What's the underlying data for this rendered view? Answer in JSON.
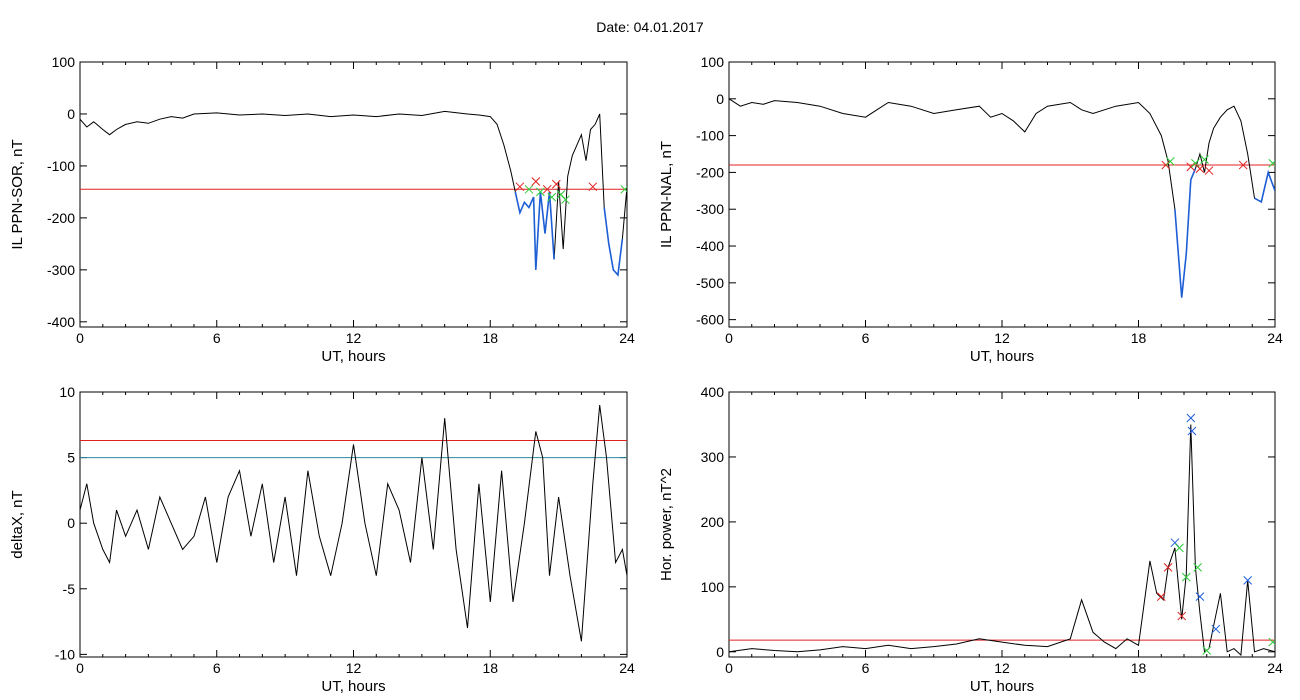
{
  "figure": {
    "title": "Date:  04.01.2017"
  },
  "colors": {
    "frame": "#000000",
    "trace": "#000000",
    "threshold_red": "#e02020",
    "threshold_teal": "#2a8a9c",
    "segment_blue": "#1f5fd6",
    "marker_red": "#e02020",
    "marker_green": "#2ecc3a",
    "marker_blue": "#2060e0"
  },
  "chart_data": [
    {
      "type": "line",
      "ylabel": "IL PPN-SOR, nT",
      "xlabel": "UT, hours",
      "xlim": [
        0,
        24
      ],
      "ylim": [
        -410,
        100
      ],
      "xticks": [
        0,
        6,
        12,
        18,
        24
      ],
      "yticks": [
        100,
        0,
        -100,
        -200,
        -300,
        -400
      ],
      "threshold_red": -145,
      "series": [
        {
          "x": [
            0,
            0.3,
            0.6,
            1.0,
            1.3,
            1.6,
            2.0,
            2.5,
            3.0,
            3.5,
            4.0,
            4.5,
            5.0,
            6,
            7,
            8,
            9,
            10,
            11,
            12,
            13,
            14,
            15,
            16,
            17,
            17.5,
            18,
            18.3,
            18.6,
            18.9,
            19.1,
            19.3,
            19.5,
            19.7,
            19.9,
            20.0,
            20.2,
            20.4,
            20.6,
            20.8,
            21.0,
            21.2,
            21.4,
            21.6,
            21.8,
            22.0,
            22.2,
            22.4,
            22.6,
            22.8,
            23.0,
            23.2,
            23.4,
            23.6,
            23.8,
            24
          ],
          "y": [
            -10,
            -25,
            -15,
            -30,
            -40,
            -30,
            -20,
            -15,
            -18,
            -10,
            -5,
            -8,
            0,
            2,
            -2,
            0,
            -3,
            0,
            -5,
            -2,
            -5,
            0,
            -3,
            5,
            0,
            -2,
            -5,
            -20,
            -60,
            -110,
            -150,
            -190,
            -170,
            -180,
            -160,
            -300,
            -150,
            -230,
            -150,
            -280,
            -130,
            -260,
            -120,
            -80,
            -60,
            -40,
            -90,
            -30,
            -20,
            0,
            -180,
            -250,
            -300,
            -310,
            -240,
            -140
          ]
        }
      ],
      "markers": [
        {
          "x": 19.3,
          "y": -140,
          "c": "red"
        },
        {
          "x": 19.7,
          "y": -145,
          "c": "green"
        },
        {
          "x": 20.0,
          "y": -130,
          "c": "red"
        },
        {
          "x": 20.2,
          "y": -150,
          "c": "green"
        },
        {
          "x": 20.5,
          "y": -145,
          "c": "red"
        },
        {
          "x": 20.7,
          "y": -160,
          "c": "green"
        },
        {
          "x": 20.9,
          "y": -135,
          "c": "red"
        },
        {
          "x": 21.1,
          "y": -155,
          "c": "green"
        },
        {
          "x": 21.3,
          "y": -165,
          "c": "green"
        },
        {
          "x": 22.5,
          "y": -140,
          "c": "red"
        },
        {
          "x": 23.9,
          "y": -145,
          "c": "green"
        }
      ]
    },
    {
      "type": "line",
      "ylabel": "IL PPN-NAL, nT",
      "xlabel": "UT, hours",
      "xlim": [
        0,
        24
      ],
      "ylim": [
        -620,
        100
      ],
      "xticks": [
        0,
        6,
        12,
        18,
        24
      ],
      "yticks": [
        100,
        0,
        -100,
        -200,
        -300,
        -400,
        -500,
        -600
      ],
      "threshold_red": -180,
      "series": [
        {
          "x": [
            0,
            0.5,
            1,
            1.5,
            2,
            3,
            4,
            5,
            6,
            6.5,
            7,
            8,
            9,
            10,
            11,
            11.5,
            12,
            12.5,
            13,
            13.5,
            14,
            15,
            15.5,
            16,
            17,
            18,
            18.5,
            19,
            19.3,
            19.6,
            19.9,
            20.1,
            20.3,
            20.5,
            20.7,
            20.9,
            21.1,
            21.3,
            21.6,
            21.9,
            22.2,
            22.5,
            22.8,
            23.1,
            23.4,
            23.7,
            24
          ],
          "y": [
            0,
            -20,
            -10,
            -15,
            -5,
            -10,
            -20,
            -40,
            -50,
            -30,
            -10,
            -20,
            -40,
            -30,
            -20,
            -50,
            -40,
            -60,
            -90,
            -40,
            -20,
            -10,
            -30,
            -40,
            -20,
            -10,
            -40,
            -100,
            -170,
            -300,
            -540,
            -420,
            -220,
            -190,
            -150,
            -200,
            -120,
            -80,
            -50,
            -30,
            -20,
            -60,
            -150,
            -270,
            -280,
            -200,
            -250
          ]
        }
      ],
      "markers": [
        {
          "x": 19.2,
          "y": -180,
          "c": "red"
        },
        {
          "x": 19.4,
          "y": -170,
          "c": "green"
        },
        {
          "x": 20.3,
          "y": -185,
          "c": "red"
        },
        {
          "x": 20.5,
          "y": -175,
          "c": "green"
        },
        {
          "x": 20.7,
          "y": -190,
          "c": "red"
        },
        {
          "x": 20.9,
          "y": -165,
          "c": "green"
        },
        {
          "x": 21.1,
          "y": -195,
          "c": "red"
        },
        {
          "x": 22.6,
          "y": -180,
          "c": "red"
        },
        {
          "x": 23.9,
          "y": -175,
          "c": "green"
        }
      ]
    },
    {
      "type": "line",
      "ylabel": "deltaX, nT",
      "xlabel": "UT, hours",
      "xlim": [
        0,
        24
      ],
      "ylim": [
        -10.2,
        10
      ],
      "xticks": [
        0,
        6,
        12,
        18,
        24
      ],
      "yticks": [
        10,
        5,
        0,
        -5,
        -10
      ],
      "threshold_red": 6.3,
      "threshold_teal": 5.0,
      "series": [
        {
          "x": [
            0,
            0.3,
            0.6,
            1.0,
            1.3,
            1.6,
            2.0,
            2.5,
            3.0,
            3.5,
            4.0,
            4.5,
            5.0,
            5.5,
            6.0,
            6.5,
            7.0,
            7.5,
            8.0,
            8.5,
            9.0,
            9.5,
            10.0,
            10.5,
            11.0,
            11.5,
            12.0,
            12.5,
            13.0,
            13.5,
            14.0,
            14.5,
            15.0,
            15.5,
            16.0,
            16.5,
            17.0,
            17.5,
            18.0,
            18.5,
            19.0,
            19.5,
            20.0,
            20.3,
            20.6,
            21.0,
            21.5,
            22.0,
            22.5,
            22.8,
            23.1,
            23.5,
            23.8,
            24
          ],
          "y": [
            1,
            3,
            0,
            -2,
            -3,
            1,
            -1,
            1,
            -2,
            2,
            0,
            -2,
            -1,
            2,
            -3,
            2,
            4,
            -1,
            3,
            -3,
            2,
            -4,
            4,
            -1,
            -4,
            0,
            6,
            0,
            -4,
            3,
            1,
            -3,
            5,
            -2,
            8,
            -2,
            -8,
            3,
            -6,
            4,
            -6,
            0,
            7,
            5,
            -4,
            2,
            -4,
            -9,
            3,
            9,
            5,
            -3,
            -2,
            -4
          ]
        }
      ]
    },
    {
      "type": "line",
      "ylabel": "Hor. power, nT^2",
      "xlabel": "UT, hours",
      "xlim": [
        0,
        24
      ],
      "ylim": [
        -8,
        400
      ],
      "xticks": [
        0,
        6,
        12,
        18,
        24
      ],
      "yticks": [
        400,
        300,
        200,
        100,
        0
      ],
      "threshold_red": 18,
      "series": [
        {
          "x": [
            0,
            1,
            2,
            3,
            4,
            5,
            6,
            7,
            8,
            9,
            10,
            11,
            12,
            13,
            14,
            15,
            15.5,
            16,
            16.5,
            17,
            17.5,
            18,
            18.5,
            18.8,
            19.1,
            19.3,
            19.6,
            19.9,
            20.1,
            20.3,
            20.5,
            20.7,
            20.9,
            21.1,
            21.3,
            21.6,
            21.9,
            22.2,
            22.5,
            22.8,
            23.1,
            23.5,
            24
          ],
          "y": [
            0,
            5,
            2,
            0,
            3,
            8,
            5,
            10,
            5,
            8,
            12,
            20,
            15,
            10,
            8,
            20,
            80,
            30,
            15,
            5,
            20,
            10,
            140,
            90,
            80,
            130,
            160,
            50,
            120,
            350,
            130,
            60,
            0,
            5,
            40,
            90,
            0,
            5,
            -5,
            110,
            0,
            5,
            0
          ]
        }
      ],
      "markers": [
        {
          "x": 19.3,
          "y": 130,
          "c": "red"
        },
        {
          "x": 19.6,
          "y": 168,
          "c": "blue"
        },
        {
          "x": 19.8,
          "y": 160,
          "c": "green"
        },
        {
          "x": 19.9,
          "y": 55,
          "c": "red"
        },
        {
          "x": 20.1,
          "y": 115,
          "c": "green"
        },
        {
          "x": 20.3,
          "y": 360,
          "c": "blue"
        },
        {
          "x": 20.35,
          "y": 340,
          "c": "blue"
        },
        {
          "x": 20.6,
          "y": 130,
          "c": "green"
        },
        {
          "x": 20.7,
          "y": 85,
          "c": "blue"
        },
        {
          "x": 21.0,
          "y": 2,
          "c": "green"
        },
        {
          "x": 21.4,
          "y": 35,
          "c": "blue"
        },
        {
          "x": 22.8,
          "y": 110,
          "c": "blue"
        },
        {
          "x": 19.0,
          "y": 85,
          "c": "red"
        },
        {
          "x": 23.9,
          "y": 15,
          "c": "green"
        }
      ]
    }
  ]
}
